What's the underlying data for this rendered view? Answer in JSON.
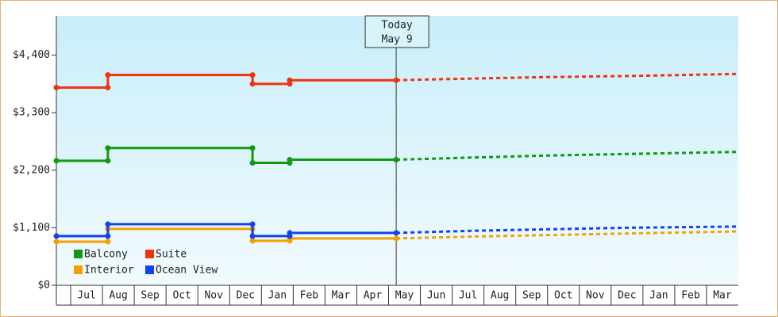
{
  "chart_data": {
    "type": "line",
    "categories": [
      "Jul",
      "Aug",
      "Sep",
      "Oct",
      "Nov",
      "Dec",
      "Jan",
      "Feb",
      "Mar",
      "Apr",
      "May",
      "Jun",
      "Jul",
      "Aug",
      "Sep",
      "Oct",
      "Nov",
      "Dec",
      "Jan",
      "Feb",
      "Mar"
    ],
    "xlim": [
      -0.45,
      21
    ],
    "ylim": [
      0,
      5150
    ],
    "yticks": [
      {
        "value": 0,
        "label": "$0"
      },
      {
        "value": 1100,
        "label": "$1,100"
      },
      {
        "value": 2200,
        "label": "$2,200"
      },
      {
        "value": 3300,
        "label": "$3,300"
      },
      {
        "value": 4400,
        "label": "$4,400"
      }
    ],
    "legend": "lower left",
    "annotation": {
      "lines": [
        "Today",
        "May 9"
      ],
      "x": 10.24
    },
    "series": [
      {
        "name": "Balcony",
        "color": "#119911",
        "x": [
          -0.45,
          1.17,
          1.17,
          5.72,
          5.72,
          6.89,
          6.89,
          10.24
        ],
        "values": [
          2380,
          2380,
          2625,
          2625,
          2340,
          2340,
          2400,
          2400
        ],
        "forecast_x": [
          10.24,
          12.5,
          15,
          17.5,
          21
        ],
        "forecast_values": [
          2400,
          2440,
          2480,
          2510,
          2550
        ]
      },
      {
        "name": "Suite",
        "color": "#ee3311",
        "x": [
          -0.45,
          1.17,
          1.17,
          5.72,
          5.72,
          6.89,
          6.89,
          10.24
        ],
        "values": [
          3780,
          3780,
          4020,
          4020,
          3850,
          3850,
          3920,
          3920
        ],
        "forecast_x": [
          10.24,
          12.5,
          15,
          17.5,
          21
        ],
        "forecast_values": [
          3920,
          3950,
          3980,
          4000,
          4040
        ]
      },
      {
        "name": "Interior",
        "color": "#f5a000",
        "x": [
          -0.45,
          1.17,
          1.17,
          5.72,
          5.72,
          6.89,
          6.89,
          10.24
        ],
        "values": [
          834,
          834,
          1077,
          1077,
          850,
          850,
          895,
          895
        ],
        "forecast_x": [
          10.24,
          12.5,
          15,
          17.5,
          21
        ],
        "forecast_values": [
          895,
          930,
          960,
          990,
          1030
        ]
      },
      {
        "name": "Ocean View",
        "color": "#1144ee",
        "x": [
          -0.45,
          1.17,
          1.17,
          5.72,
          5.72,
          6.89,
          6.89,
          10.24
        ],
        "values": [
          941,
          941,
          1168,
          1168,
          941,
          941,
          1001,
          1001
        ],
        "forecast_x": [
          10.24,
          12.5,
          15,
          17.5,
          21
        ],
        "forecast_values": [
          1001,
          1040,
          1070,
          1100,
          1123
        ]
      }
    ]
  }
}
